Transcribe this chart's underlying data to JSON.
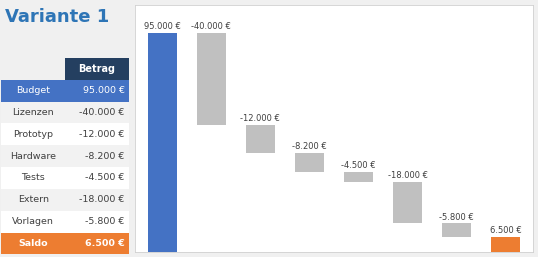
{
  "title": "Variante 1",
  "title_color": "#2e75b6",
  "title_fontsize": 13,
  "categories": [
    "Budget",
    "Lizenzen",
    "Prototyp",
    "Hardware",
    "Tests",
    "Extern",
    "Vorlagen",
    "Saldo"
  ],
  "values": [
    95000,
    -40000,
    -12000,
    -8200,
    -4500,
    -18000,
    -5800,
    6500
  ],
  "table_labels": [
    "Budget",
    "Lizenzen",
    "Prototyp",
    "Hardware",
    "Tests",
    "Extern",
    "Vorlagen",
    "Saldo"
  ],
  "table_values": [
    "95.000 €",
    "-40.000 €",
    "-12.000 €",
    "-8.200 €",
    "-4.500 €",
    "-18.000 €",
    "-5.800 €",
    "6.500 €"
  ],
  "table_header": "Betrag",
  "bar_labels": [
    "95.000 €",
    "-40.000 €",
    "-12.000 €",
    "-8.200 €",
    "-4.500 €",
    "-18.000 €",
    "-5.800 €",
    "6.500 €"
  ],
  "color_budget": "#4472c4",
  "color_negative": "#c0c0c0",
  "color_saldo": "#ed7d31",
  "color_table_header_bg": "#243f60",
  "color_table_header_text": "#ffffff",
  "color_budget_row_bg": "#4472c4",
  "color_budget_row_text": "#ffffff",
  "color_saldo_row_bg": "#ed7d31",
  "color_saldo_row_text": "#ffffff",
  "color_odd_row_bg": "#f2f2f2",
  "color_even_row_bg": "#ffffff",
  "color_row_text": "#404040",
  "chart_bg": "#ffffff",
  "fig_bg": "#f0f0f0",
  "bar_width": 0.6
}
